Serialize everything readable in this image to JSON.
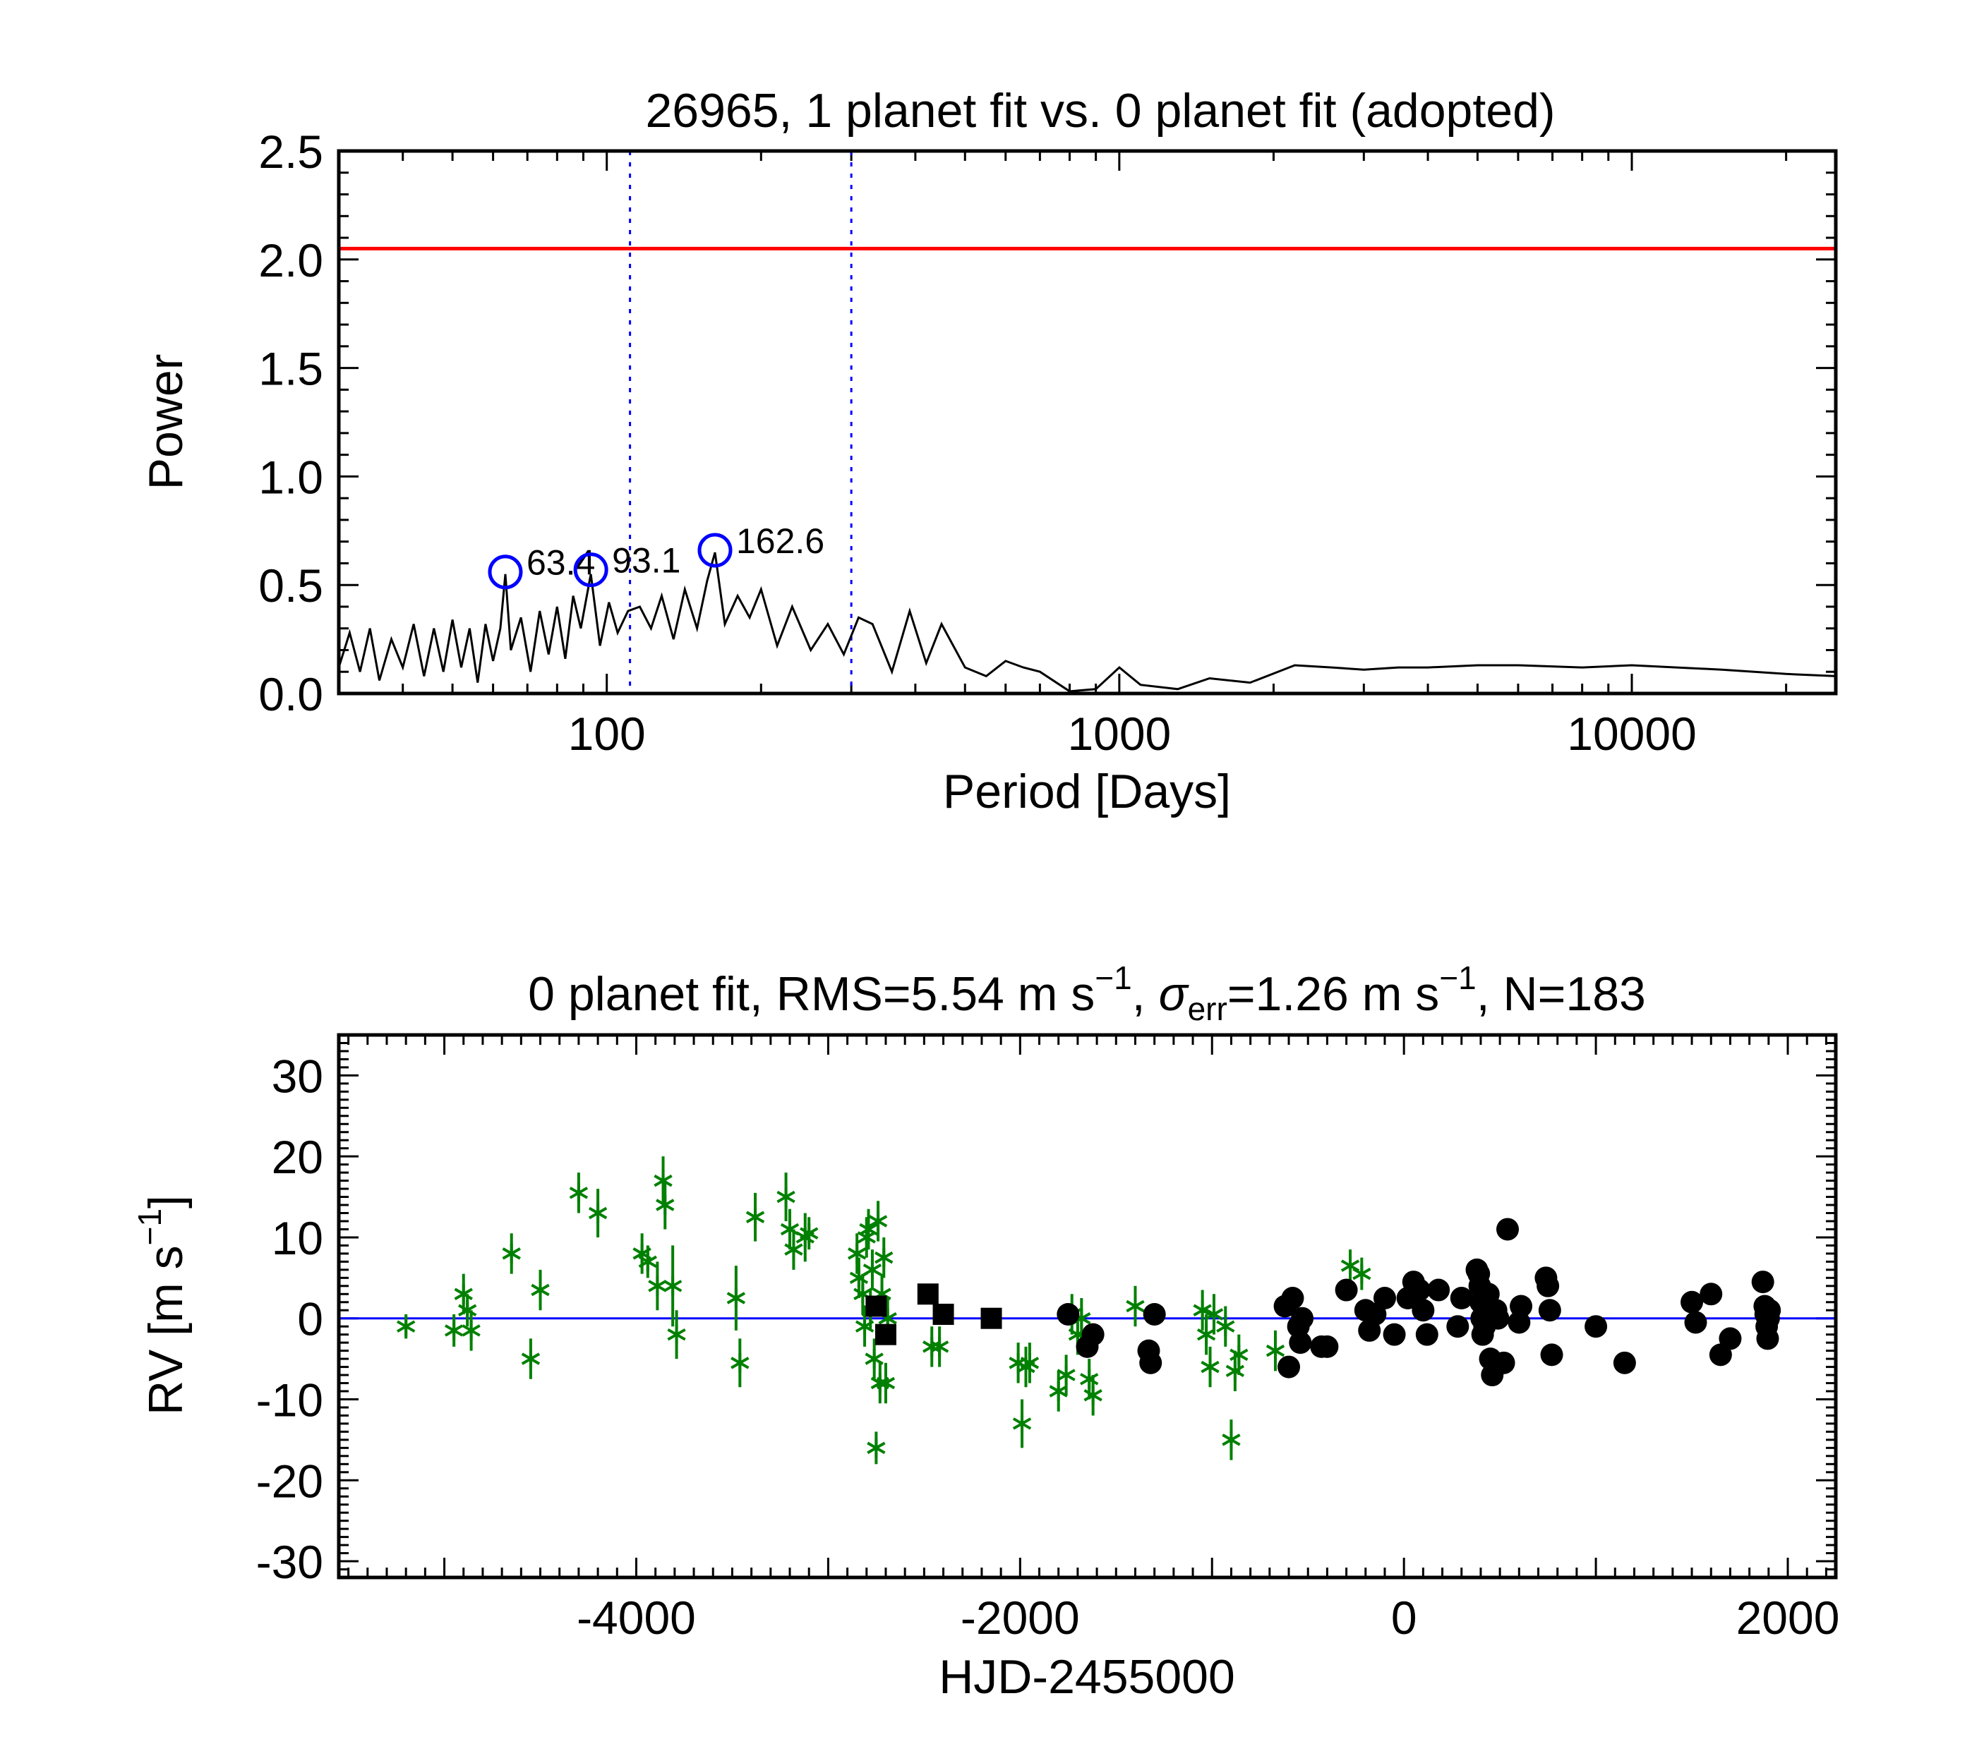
{
  "chart_data": [
    {
      "type": "line",
      "title": "26965,  1 planet fit vs. 0 planet fit (adopted)",
      "xlabel": "Period [Days]",
      "ylabel": "Power",
      "xscale": "log",
      "xlim": [
        30,
        25000
      ],
      "ylim": [
        0,
        2.5
      ],
      "xticks": [
        "100",
        "1000",
        "10000"
      ],
      "yticks": [
        "0.0",
        "0.5",
        "1.0",
        "1.5",
        "2.0",
        "2.5"
      ],
      "threshold": {
        "value": 2.05,
        "color": "#ff0000"
      },
      "vlines": {
        "x": [
          111,
          300
        ],
        "color": "#0000ff",
        "style": "dotted"
      },
      "series": [
        {
          "color": "#000000",
          "x": [
            30,
            31.5,
            33,
            34.5,
            36,
            38,
            40,
            42,
            44,
            46,
            48,
            50,
            52,
            54,
            56,
            58,
            60,
            62,
            63.4,
            65,
            68,
            71,
            74,
            77,
            80,
            83,
            86,
            89,
            93.1,
            97,
            101,
            105,
            110,
            116,
            122,
            128,
            135,
            142,
            150,
            157,
            162.6,
            170,
            180,
            190,
            200,
            215,
            230,
            250,
            270,
            290,
            310,
            330,
            360,
            390,
            420,
            450,
            500,
            550,
            600,
            650,
            700,
            800,
            900,
            1000,
            1100,
            1300,
            1500,
            1800,
            2200,
            2600,
            3000,
            3500,
            4000,
            5000,
            6000,
            8000,
            10000,
            15000,
            20000,
            25000
          ],
          "y": [
            0.12,
            0.28,
            0.1,
            0.3,
            0.06,
            0.25,
            0.12,
            0.32,
            0.08,
            0.3,
            0.1,
            0.34,
            0.12,
            0.3,
            0.05,
            0.32,
            0.15,
            0.3,
            0.55,
            0.2,
            0.35,
            0.1,
            0.38,
            0.18,
            0.4,
            0.16,
            0.45,
            0.3,
            0.55,
            0.22,
            0.42,
            0.28,
            0.38,
            0.4,
            0.3,
            0.45,
            0.25,
            0.48,
            0.3,
            0.52,
            0.65,
            0.32,
            0.45,
            0.35,
            0.48,
            0.22,
            0.4,
            0.2,
            0.32,
            0.18,
            0.35,
            0.32,
            0.1,
            0.38,
            0.14,
            0.32,
            0.12,
            0.08,
            0.15,
            0.12,
            0.1,
            0.01,
            0.02,
            0.12,
            0.04,
            0.02,
            0.07,
            0.05,
            0.13,
            0.12,
            0.11,
            0.12,
            0.12,
            0.13,
            0.13,
            0.12,
            0.13,
            0.11,
            0.09,
            0.08
          ]
        }
      ],
      "peaks": [
        {
          "x": 63.4,
          "y": 0.56,
          "label": "63.4"
        },
        {
          "x": 93.1,
          "y": 0.57,
          "label": "93.1"
        },
        {
          "x": 162.6,
          "y": 0.66,
          "label": "162.6"
        }
      ]
    },
    {
      "type": "scatter",
      "title_parts": [
        "0 planet fit, RMS=5.54 m s",
        "−1",
        ", ",
        "σ",
        "err",
        "=1.26 m s",
        "−1",
        ", N=183"
      ],
      "xlabel": "HJD-2455000",
      "ylabel": "RV [m s",
      "ylabel_sup": "−1",
      "ylabel_end": "]",
      "xlim": [
        -5550,
        2250
      ],
      "ylim": [
        -32,
        35
      ],
      "xticks": [
        "-4000",
        "-2000",
        "0",
        "2000"
      ],
      "yticks": [
        "30",
        "20",
        "10",
        "0",
        "-10",
        "-20",
        "-30"
      ],
      "zero_line_color": "#0000ff",
      "series": [
        {
          "marker": "asterisk",
          "color": "#008000",
          "points": [
            [
              -5200,
              -1,
              1.5
            ],
            [
              -4950,
              -1.5,
              2
            ],
            [
              -4900,
              3,
              2.5
            ],
            [
              -4880,
              1,
              2
            ],
            [
              -4860,
              -1.5,
              2.5
            ],
            [
              -4650,
              8,
              2.5
            ],
            [
              -4550,
              -5,
              2.5
            ],
            [
              -4500,
              3.5,
              2.5
            ],
            [
              -4300,
              15.5,
              2.5
            ],
            [
              -4200,
              13,
              3
            ],
            [
              -3970,
              8,
              2.5
            ],
            [
              -3940,
              7,
              2
            ],
            [
              -3890,
              4,
              3
            ],
            [
              -3860,
              17,
              3
            ],
            [
              -3850,
              14,
              3
            ],
            [
              -3810,
              4,
              5
            ],
            [
              -3790,
              -2,
              3
            ],
            [
              -3480,
              2.5,
              4
            ],
            [
              -3460,
              -5.5,
              3
            ],
            [
              -3380,
              12.5,
              3
            ],
            [
              -3220,
              15,
              3
            ],
            [
              -3200,
              11,
              2.5
            ],
            [
              -3180,
              8.5,
              2.5
            ],
            [
              -3120,
              10,
              3
            ],
            [
              -3100,
              10.5,
              2
            ],
            [
              -2850,
              8,
              2.5
            ],
            [
              -2840,
              5,
              2.5
            ],
            [
              -2820,
              3,
              2.5
            ],
            [
              -2810,
              -1,
              2.5
            ],
            [
              -2800,
              10,
              2.5
            ],
            [
              -2790,
              11,
              2.5
            ],
            [
              -2780,
              1,
              2.5
            ],
            [
              -2770,
              6,
              2.5
            ],
            [
              -2760,
              -5,
              2.5
            ],
            [
              -2750,
              -16,
              2
            ],
            [
              -2740,
              12,
              2.5
            ],
            [
              -2730,
              -8,
              2.5
            ],
            [
              -2720,
              3,
              2.5
            ],
            [
              -2710,
              7.5,
              2.5
            ],
            [
              -2700,
              -8,
              2.5
            ],
            [
              -2690,
              0,
              2.5
            ],
            [
              -2460,
              -3.5,
              2.5
            ],
            [
              -2420,
              -3.5,
              2.5
            ],
            [
              -2010,
              -5.5,
              2.5
            ],
            [
              -1990,
              -13,
              3
            ],
            [
              -1970,
              -6,
              2.5
            ],
            [
              -1950,
              -5.5,
              2.5
            ],
            [
              -1800,
              -9,
              2.5
            ],
            [
              -1760,
              -7,
              2.5
            ],
            [
              -1730,
              0.5,
              2.5
            ],
            [
              -1700,
              -2,
              2.5
            ],
            [
              -1680,
              0,
              2.5
            ],
            [
              -1640,
              -7.5,
              2.5
            ],
            [
              -1620,
              -9.5,
              2.5
            ],
            [
              -1400,
              1.5,
              2.5
            ],
            [
              -1050,
              1,
              2.5
            ],
            [
              -1030,
              -2,
              2.5
            ],
            [
              -1010,
              -6,
              2.5
            ],
            [
              -990,
              0.5,
              2.5
            ],
            [
              -930,
              -1,
              2.5
            ],
            [
              -900,
              -15,
              2.5
            ],
            [
              -880,
              -6.5,
              2.5
            ],
            [
              -860,
              -4.5,
              2.5
            ],
            [
              -670,
              -4,
              2.5
            ],
            [
              -280,
              6.5,
              2
            ],
            [
              -220,
              5.5,
              2
            ]
          ]
        },
        {
          "marker": "square",
          "color": "#000000",
          "points": [
            [
              -2750,
              1.5
            ],
            [
              -2700,
              -2
            ],
            [
              -2480,
              3
            ],
            [
              -2400,
              0.5
            ],
            [
              -2150,
              0
            ]
          ]
        },
        {
          "marker": "circle",
          "color": "#000000",
          "points": [
            [
              -1750,
              0.5
            ],
            [
              -1650,
              -3.5
            ],
            [
              -1620,
              -2
            ],
            [
              -1300,
              0.5
            ],
            [
              -1330,
              -4
            ],
            [
              -1320,
              -5.5
            ],
            [
              -620,
              1.5
            ],
            [
              -600,
              -6
            ],
            [
              -580,
              2.5
            ],
            [
              -550,
              -1
            ],
            [
              -540,
              -3
            ],
            [
              -530,
              0
            ],
            [
              -400,
              -3.5
            ],
            [
              -430,
              -3.5
            ],
            [
              -300,
              3.5
            ],
            [
              -200,
              1
            ],
            [
              -180,
              -1.5
            ],
            [
              -150,
              0.5
            ],
            [
              -100,
              2.5
            ],
            [
              -50,
              -2
            ],
            [
              20,
              2.5
            ],
            [
              50,
              4.5
            ],
            [
              80,
              3.5
            ],
            [
              100,
              1
            ],
            [
              120,
              -2
            ],
            [
              180,
              3.5
            ],
            [
              280,
              -1
            ],
            [
              300,
              2.5
            ],
            [
              380,
              6
            ],
            [
              390,
              5.5
            ],
            [
              395,
              4
            ],
            [
              400,
              2
            ],
            [
              405,
              0
            ],
            [
              410,
              -2
            ],
            [
              420,
              -1
            ],
            [
              440,
              3
            ],
            [
              450,
              -5
            ],
            [
              460,
              -7
            ],
            [
              480,
              1
            ],
            [
              490,
              0
            ],
            [
              520,
              -5.5
            ],
            [
              540,
              11
            ],
            [
              600,
              -0.5
            ],
            [
              610,
              1.5
            ],
            [
              740,
              5
            ],
            [
              750,
              4
            ],
            [
              760,
              1
            ],
            [
              770,
              -4.5
            ],
            [
              1000,
              -1
            ],
            [
              1150,
              -5.5
            ],
            [
              1500,
              2
            ],
            [
              1520,
              -0.5
            ],
            [
              1600,
              3
            ],
            [
              1650,
              -4.5
            ],
            [
              1700,
              -2.5
            ],
            [
              1870,
              4.5
            ],
            [
              1880,
              1.5
            ],
            [
              1885,
              0.5
            ],
            [
              1890,
              -1
            ],
            [
              1895,
              -2.5
            ],
            [
              1900,
              0
            ],
            [
              1905,
              1
            ]
          ]
        }
      ]
    }
  ]
}
